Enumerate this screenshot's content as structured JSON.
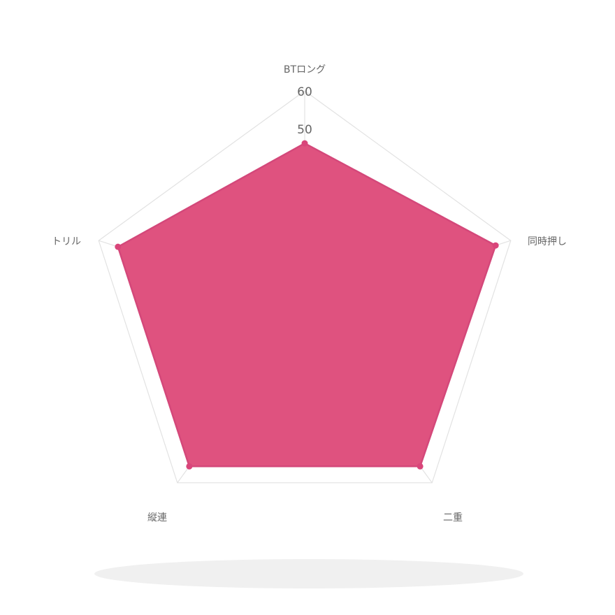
{
  "chart_data": {
    "type": "radar",
    "axes": [
      "BTロング",
      "同時押し",
      "二重",
      "縦連",
      "トリル"
    ],
    "series": [
      {
        "values": [
          48.5,
          59.3,
          58.0,
          58.0,
          58.0
        ],
        "color": "#df527f"
      }
    ],
    "rlim": [
      0,
      64
    ],
    "ticks": [
      "50",
      "60"
    ],
    "grid": true,
    "legend": "none"
  }
}
